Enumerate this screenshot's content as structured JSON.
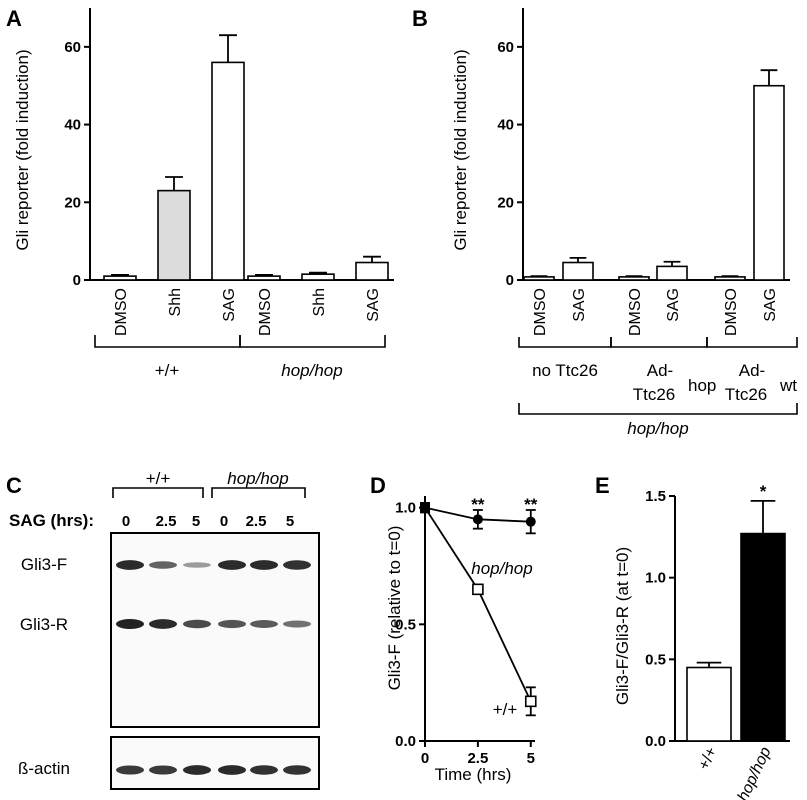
{
  "panels": {
    "a": "A",
    "b": "B",
    "c": "C",
    "d": "D",
    "e": "E"
  },
  "chart_data": [
    {
      "panel": "A",
      "type": "bar",
      "ylabel": "Gli reporter (fold induction)",
      "ylim": [
        0,
        70
      ],
      "yticks": [
        "0",
        "20",
        "40",
        "60"
      ],
      "categories": [
        "DMSO",
        "Shh",
        "SAG",
        "DMSO",
        "Shh",
        "SAG"
      ],
      "values": [
        1,
        23,
        56,
        1,
        1.5,
        4.5
      ],
      "errors": [
        0.3,
        3.5,
        7,
        0.3,
        0.4,
        1.5
      ],
      "colors": [
        "#ffffff",
        "#dcdcdc",
        "#ffffff",
        "#ffffff",
        "#ffffff",
        "#ffffff"
      ],
      "groups": [
        "+/+",
        "hop/hop"
      ]
    },
    {
      "panel": "B",
      "type": "bar",
      "ylabel": "Gli reporter (fold induction)",
      "ylim": [
        0,
        70
      ],
      "yticks": [
        "0",
        "20",
        "40",
        "60"
      ],
      "categories": [
        "DMSO",
        "SAG",
        "DMSO",
        "SAG",
        "DMSO",
        "SAG"
      ],
      "values": [
        0.8,
        4.5,
        0.8,
        3.5,
        0.8,
        50
      ],
      "errors": [
        0.2,
        1.2,
        0.2,
        1.2,
        0.2,
        4
      ],
      "groups": [
        {
          "line1": "no Ttc26",
          "line2": "",
          "sup": ""
        },
        {
          "line1": "Ad-",
          "line2": "Ttc26",
          "sup": "hop"
        },
        {
          "line1": "Ad-",
          "line2": "Ttc26",
          "sup": "wt"
        }
      ],
      "outer_group": "hop/hop"
    },
    {
      "panel": "D",
      "type": "line",
      "xlabel": "Time (hrs)",
      "ylabel": "Gli3-F (relative to t=0)",
      "xlim": [
        0,
        5.2
      ],
      "ylim": [
        0,
        1.05
      ],
      "xticks": [
        "0",
        "2.5",
        "5"
      ],
      "yticks": [
        "0.0",
        "0.5",
        "1.0"
      ],
      "series": [
        {
          "name": "hop/hop",
          "x": [
            0,
            2.5,
            5
          ],
          "y": [
            1.0,
            0.95,
            0.94
          ],
          "err": [
            0.02,
            0.04,
            0.05
          ]
        },
        {
          "name": "+/+",
          "x": [
            0,
            2.5,
            5
          ],
          "y": [
            1.0,
            0.65,
            0.17
          ],
          "err": [
            0.02,
            0.02,
            0.06
          ]
        }
      ],
      "annotations": [
        "**",
        "**"
      ]
    },
    {
      "panel": "E",
      "type": "bar",
      "ylabel": "Gli3-F/Gli3-R (at t=0)",
      "ylim": [
        0,
        1.5
      ],
      "yticks": [
        "0.0",
        "0.5",
        "1.0",
        "1.5"
      ],
      "categories": [
        "+/+",
        "hop/hop"
      ],
      "values": [
        0.45,
        1.27
      ],
      "errors": [
        0.03,
        0.2
      ],
      "colors": [
        "#ffffff",
        "#000000"
      ],
      "annotation": "*"
    }
  ],
  "blot": {
    "groups": [
      "+/+",
      "hop/hop"
    ],
    "row_label": "SAG (hrs):",
    "lanes": [
      "0",
      "2.5",
      "5",
      "0",
      "2.5",
      "5"
    ],
    "bands": [
      "Gli3-F",
      "Gli3-R",
      "ß-actin"
    ],
    "intensity": {
      "gli3f": [
        0.95,
        0.6,
        0.25,
        0.95,
        0.95,
        0.9
      ],
      "gli3r": [
        1.0,
        0.95,
        0.75,
        0.7,
        0.65,
        0.5
      ],
      "actin": [
        0.85,
        0.85,
        0.95,
        0.95,
        0.9,
        0.9
      ]
    }
  }
}
